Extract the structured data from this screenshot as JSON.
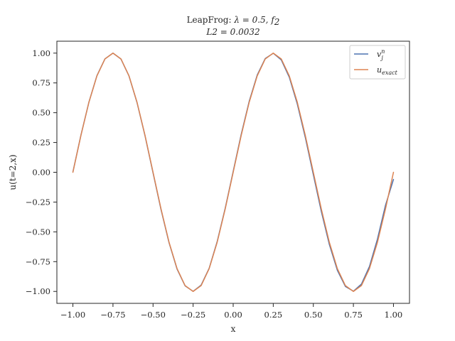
{
  "chart_data": {
    "type": "line",
    "title_line1_prefix": "LeapFrog: ",
    "title_line1_math": "λ = 0.5, f",
    "title_line1_sub": "2",
    "title_line2": "L2 = 0.0032",
    "xlabel": "x",
    "ylabel": "u(t=2,x)",
    "xlim": [
      -1.1,
      1.1
    ],
    "ylim": [
      -1.1,
      1.1
    ],
    "xticks": [
      -1.0,
      -0.75,
      -0.5,
      -0.25,
      0.0,
      0.25,
      0.5,
      0.75,
      1.0
    ],
    "xtick_labels": [
      "−1.00",
      "−0.75",
      "−0.50",
      "−0.25",
      "0.00",
      "0.25",
      "0.50",
      "0.75",
      "1.00"
    ],
    "yticks": [
      -1.0,
      -0.75,
      -0.5,
      -0.25,
      0.0,
      0.25,
      0.5,
      0.75,
      1.0
    ],
    "ytick_labels": [
      "−1.00",
      "−0.75",
      "−0.50",
      "−0.25",
      "0.00",
      "0.25",
      "0.50",
      "0.75",
      "1.00"
    ],
    "grid": false,
    "legend_position": "upper right",
    "series": [
      {
        "name": "v_j^n",
        "legend_main": "v",
        "legend_sub": "j",
        "legend_sup": "n",
        "color": "#4c72b0",
        "x": [
          -1.0,
          -0.95,
          -0.9,
          -0.85,
          -0.8,
          -0.75,
          -0.7,
          -0.65,
          -0.6,
          -0.55,
          -0.5,
          -0.45,
          -0.4,
          -0.35,
          -0.3,
          -0.25,
          -0.2,
          -0.15,
          -0.1,
          -0.05,
          0.0,
          0.05,
          0.1,
          0.15,
          0.2,
          0.25,
          0.3,
          0.35,
          0.4,
          0.45,
          0.5,
          0.55,
          0.6,
          0.65,
          0.7,
          0.75,
          0.8,
          0.85,
          0.9,
          0.95,
          1.0
        ],
        "values": [
          0.003,
          0.311,
          0.589,
          0.811,
          0.952,
          1.0,
          0.95,
          0.808,
          0.585,
          0.306,
          -0.005,
          -0.315,
          -0.592,
          -0.813,
          -0.953,
          -0.999,
          -0.947,
          -0.806,
          -0.582,
          -0.303,
          0.007,
          0.318,
          0.596,
          0.816,
          0.955,
          0.999,
          0.943,
          0.798,
          0.573,
          0.292,
          -0.02,
          -0.33,
          -0.606,
          -0.823,
          -0.958,
          -0.998,
          -0.939,
          -0.791,
          -0.561,
          -0.278,
          -0.06
        ]
      },
      {
        "name": "u_exact",
        "legend_main": "u",
        "legend_sub": "exact",
        "legend_sup": "",
        "color": "#dd8452",
        "x": [
          -1.0,
          -0.95,
          -0.9,
          -0.85,
          -0.8,
          -0.75,
          -0.7,
          -0.65,
          -0.6,
          -0.55,
          -0.5,
          -0.45,
          -0.4,
          -0.35,
          -0.3,
          -0.25,
          -0.2,
          -0.15,
          -0.1,
          -0.05,
          0.0,
          0.05,
          0.1,
          0.15,
          0.2,
          0.25,
          0.3,
          0.35,
          0.4,
          0.45,
          0.5,
          0.55,
          0.6,
          0.65,
          0.7,
          0.75,
          0.8,
          0.85,
          0.9,
          0.95,
          1.0
        ],
        "values": [
          0.0,
          0.309,
          0.588,
          0.809,
          0.951,
          1.0,
          0.951,
          0.809,
          0.588,
          0.309,
          0.0,
          -0.309,
          -0.588,
          -0.809,
          -0.951,
          -1.0,
          -0.951,
          -0.809,
          -0.588,
          -0.309,
          0.0,
          0.309,
          0.588,
          0.809,
          0.951,
          1.0,
          0.951,
          0.809,
          0.588,
          0.309,
          0.0,
          -0.309,
          -0.588,
          -0.809,
          -0.951,
          -1.0,
          -0.951,
          -0.809,
          -0.588,
          -0.309,
          0.0
        ]
      }
    ]
  }
}
